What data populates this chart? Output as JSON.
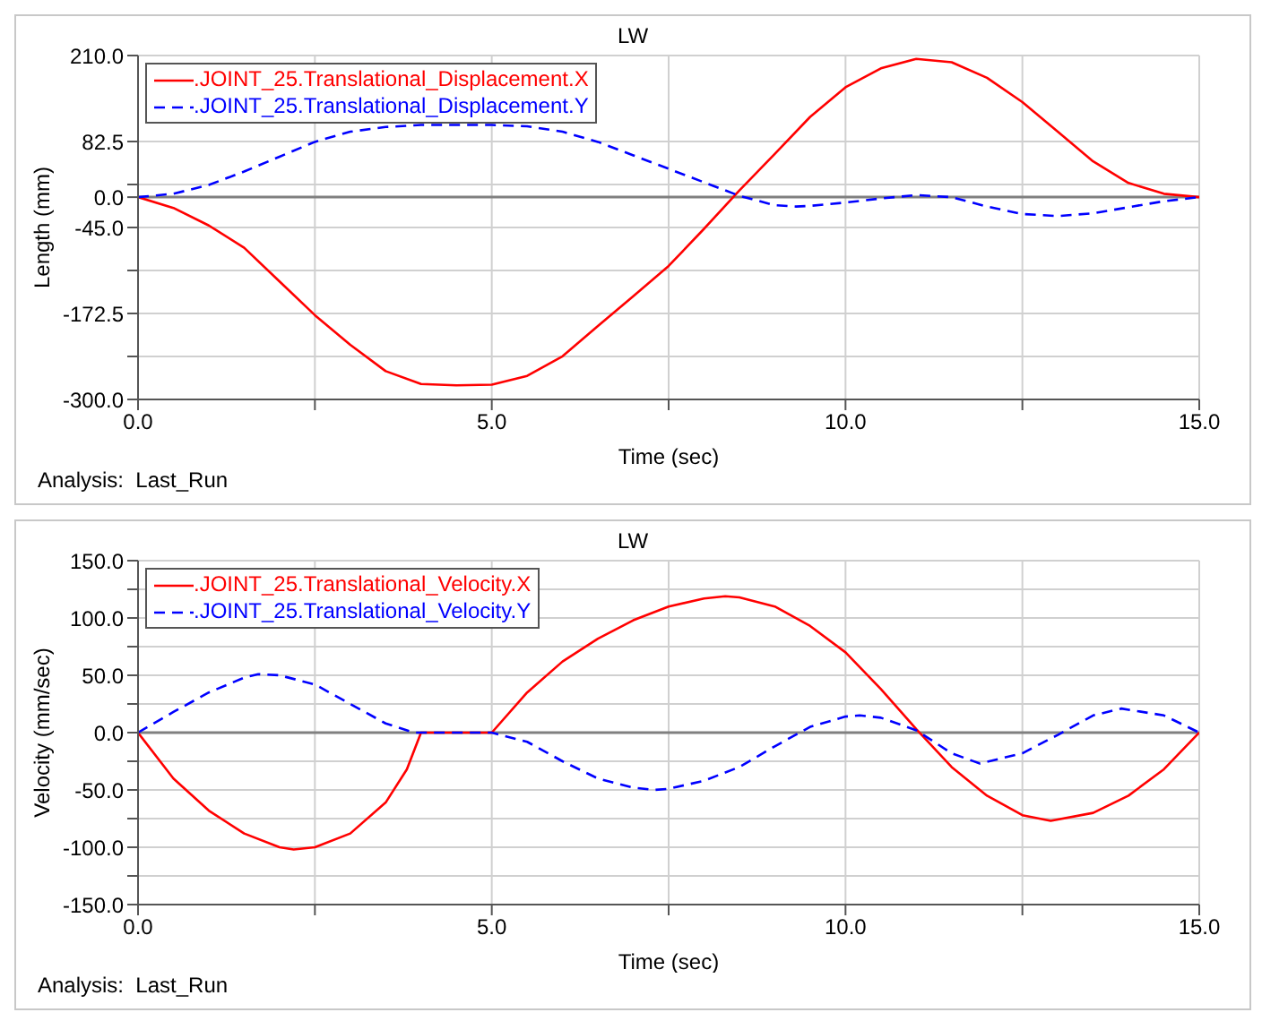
{
  "chart_data": [
    {
      "type": "line",
      "title": "LW",
      "xlabel": "Time (sec)",
      "ylabel": "Length (mm)",
      "annotations": [
        "Analysis:  Last_Run"
      ],
      "xlim": [
        0,
        15
      ],
      "xticks": [
        {
          "value": 0,
          "label": "0.0"
        },
        {
          "value": 2.5,
          "label": null
        },
        {
          "value": 5,
          "label": "5.0"
        },
        {
          "value": 7.5,
          "label": null
        },
        {
          "value": 10,
          "label": "10.0"
        },
        {
          "value": 12.5,
          "label": null
        },
        {
          "value": 15,
          "label": "15.0"
        }
      ],
      "ylim": [
        -300,
        210
      ],
      "yticks": [
        {
          "value": -300,
          "label": "-300.0"
        },
        {
          "value": -236.25,
          "label": null
        },
        {
          "value": -172.5,
          "label": "-172.5"
        },
        {
          "value": -108.75,
          "label": null
        },
        {
          "value": -45,
          "label": "-45.0"
        },
        {
          "value": 0,
          "label": "0.0"
        },
        {
          "value": 18.75,
          "label": null
        },
        {
          "value": 82.5,
          "label": "82.5"
        },
        {
          "value": 210,
          "label": "210.0"
        }
      ],
      "grid": true,
      "legend": "top left",
      "ref_lines": [
        {
          "axis": "y",
          "value": 0,
          "color": "#808080"
        }
      ],
      "series": [
        {
          "name": ".JOINT_25.Translational_Displacement.X",
          "color": "#ff0000",
          "line_style": "solid",
          "x": [
            0,
            0.5,
            1,
            1.5,
            2,
            2.5,
            3,
            3.5,
            4,
            4.5,
            5,
            5.5,
            6,
            6.5,
            7,
            7.5,
            8,
            8.5,
            9,
            9.5,
            10,
            10.5,
            11,
            11.5,
            12,
            12.5,
            13,
            13.5,
            14,
            14.5,
            15
          ],
          "values": [
            0,
            -16,
            -42,
            -75,
            -125,
            -175,
            -219,
            -258,
            -277,
            -279,
            -278,
            -265,
            -236,
            -191,
            -147,
            -102,
            -47,
            10,
            64,
            119,
            163,
            191,
            205,
            200,
            177,
            141,
            97,
            53,
            21,
            5,
            0
          ]
        },
        {
          "name": ".JOINT_25.Translational_Displacement.Y",
          "color": "#0000ff",
          "line_style": "dashed",
          "x": [
            0,
            0.5,
            1,
            1.5,
            2,
            2.5,
            3,
            3.5,
            4,
            5,
            5.5,
            6,
            6.5,
            7,
            7.5,
            8,
            8.5,
            9,
            9.3,
            9.5,
            10,
            10.5,
            11,
            11.5,
            12,
            12.5,
            13,
            13.5,
            14,
            14.5,
            15
          ],
          "values": [
            0,
            5,
            18,
            38,
            60,
            82,
            97,
            104,
            107,
            107,
            105,
            97,
            82,
            62,
            42,
            22,
            2,
            -12,
            -14,
            -13,
            -8,
            -2,
            3,
            0,
            -14,
            -25,
            -28,
            -24,
            -15,
            -6,
            0
          ]
        }
      ]
    },
    {
      "type": "line",
      "title": "LW",
      "xlabel": "Time (sec)",
      "ylabel": "Velocity (mm/sec)",
      "annotations": [
        "Analysis:  Last_Run"
      ],
      "xlim": [
        0,
        15
      ],
      "xticks": [
        {
          "value": 0,
          "label": "0.0"
        },
        {
          "value": 2.5,
          "label": null
        },
        {
          "value": 5,
          "label": "5.0"
        },
        {
          "value": 7.5,
          "label": null
        },
        {
          "value": 10,
          "label": "10.0"
        },
        {
          "value": 12.5,
          "label": null
        },
        {
          "value": 15,
          "label": "15.0"
        }
      ],
      "ylim": [
        -150,
        150
      ],
      "yticks": [
        {
          "value": -150,
          "label": "-150.0"
        },
        {
          "value": -125,
          "label": null
        },
        {
          "value": -100,
          "label": "-100.0"
        },
        {
          "value": -75,
          "label": null
        },
        {
          "value": -50,
          "label": "-50.0"
        },
        {
          "value": -25,
          "label": null
        },
        {
          "value": 0,
          "label": "0.0"
        },
        {
          "value": 25,
          "label": null
        },
        {
          "value": 50,
          "label": "50.0"
        },
        {
          "value": 75,
          "label": null
        },
        {
          "value": 100,
          "label": "100.0"
        },
        {
          "value": 125,
          "label": null
        },
        {
          "value": 150,
          "label": "150.0"
        }
      ],
      "grid": true,
      "legend": "top left",
      "ref_lines": [
        {
          "axis": "y",
          "value": 0,
          "color": "#808080"
        }
      ],
      "series": [
        {
          "name": ".JOINT_25.Translational_Velocity.X",
          "color": "#ff0000",
          "line_style": "solid",
          "x": [
            0,
            0.5,
            1,
            1.5,
            2,
            2.2,
            2.5,
            3,
            3.5,
            3.8,
            4,
            5,
            5.5,
            6,
            6.5,
            7,
            7.5,
            8,
            8.3,
            8.5,
            9,
            9.5,
            10,
            10.5,
            11,
            11.5,
            12,
            12.5,
            12.9,
            13.5,
            14,
            14.5,
            15
          ],
          "values": [
            0,
            -40,
            -68,
            -88,
            -100,
            -102,
            -100,
            -88,
            -61,
            -32,
            0,
            0,
            35,
            62,
            82,
            98,
            110,
            117,
            119,
            118,
            110,
            93,
            70,
            38,
            3,
            -30,
            -55,
            -72,
            -77,
            -70,
            -55,
            -32,
            0
          ]
        },
        {
          "name": ".JOINT_25.Translational_Velocity.Y",
          "color": "#0000ff",
          "line_style": "dashed",
          "x": [
            0,
            0.5,
            1,
            1.5,
            1.7,
            2,
            2.5,
            3,
            3.5,
            3.9,
            4,
            5,
            5.5,
            6,
            6.5,
            7,
            7.3,
            7.5,
            8,
            8.5,
            9,
            9.5,
            10,
            10.2,
            10.5,
            11,
            11.5,
            11.9,
            12.5,
            13,
            13.5,
            13.9,
            14.5,
            15
          ],
          "values": [
            0,
            18,
            35,
            48,
            51,
            50,
            42,
            25,
            8,
            0,
            0,
            0,
            -8,
            -25,
            -40,
            -48,
            -50,
            -49,
            -42,
            -30,
            -12,
            5,
            14,
            15,
            13,
            2,
            -18,
            -27,
            -18,
            -2,
            15,
            21,
            15,
            0
          ]
        }
      ]
    }
  ]
}
